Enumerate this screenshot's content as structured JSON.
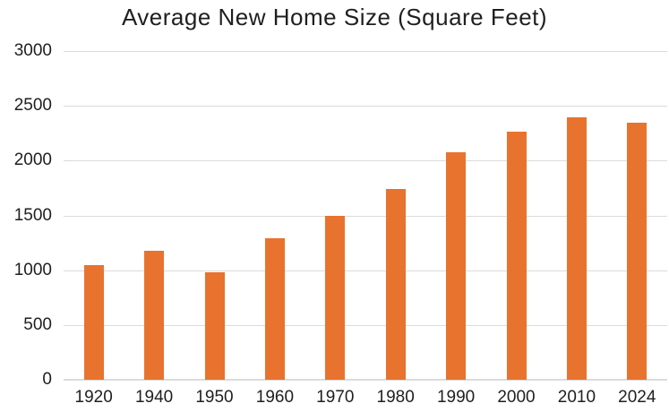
{
  "chart_data": {
    "type": "bar",
    "title": "Average New Home Size (Square Feet)",
    "categories": [
      "1920",
      "1940",
      "1950",
      "1960",
      "1970",
      "1980",
      "1990",
      "2000",
      "2010",
      "2024"
    ],
    "values": [
      1048,
      1177,
      983,
      1289,
      1500,
      1740,
      2080,
      2266,
      2392,
      2348
    ],
    "xlabel": "",
    "ylabel": "",
    "ylim": [
      0,
      3000
    ],
    "ytick_interval": 500,
    "ytick_labels": [
      "0",
      "500",
      "1000",
      "1500",
      "2000",
      "2500",
      "3000"
    ],
    "grid": "horizontal",
    "legend": "none",
    "colors": {
      "bar": "#e8732e",
      "gridline": "#dbdbdb",
      "axis_text": "#1f1f1f",
      "title_text": "#1f1f1f",
      "background": "#ffffff"
    }
  }
}
